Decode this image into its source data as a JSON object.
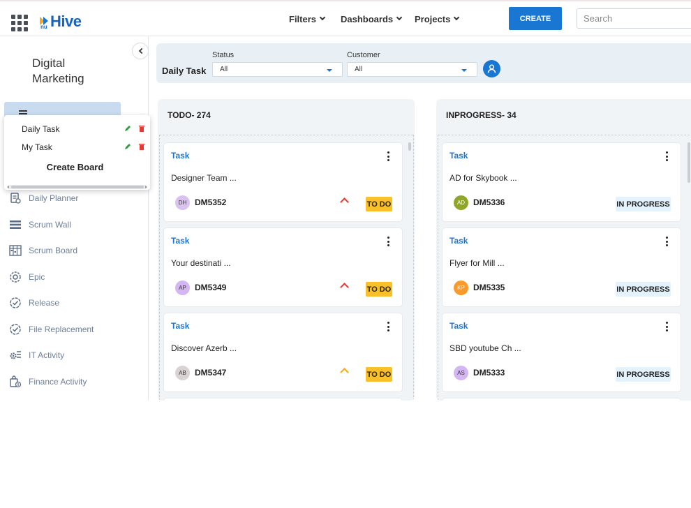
{
  "header": {
    "logo": "Hive",
    "logo_prefix": "nu",
    "nav": [
      "Filters",
      "Dashboards",
      "Projects"
    ],
    "create_label": "CREATE",
    "search_placeholder": "Search"
  },
  "sidebar": {
    "project_title": "Digital Marketing",
    "boards_menu": {
      "boards": [
        "Daily Task",
        "My Task"
      ],
      "create_label": "Create Board"
    },
    "items": [
      {
        "label": "Daily Planner",
        "icon": "daily-planner-icon"
      },
      {
        "label": "Scrum Wall",
        "icon": "scrum-wall-icon"
      },
      {
        "label": "Scrum Board",
        "icon": "scrum-board-icon"
      },
      {
        "label": "Epic",
        "icon": "epic-icon"
      },
      {
        "label": "Release",
        "icon": "release-icon"
      },
      {
        "label": "File Replacement",
        "icon": "file-replacement-icon"
      },
      {
        "label": "IT Activity",
        "icon": "it-activity-icon"
      },
      {
        "label": "Finance Activity",
        "icon": "finance-activity-icon"
      }
    ]
  },
  "filters": {
    "board_title": "Daily Task",
    "status_label": "Status",
    "status_value": "All",
    "customer_label": "Customer",
    "customer_value": "All"
  },
  "columns": [
    {
      "title": "TODO- 274",
      "cards": [
        {
          "type": "Task",
          "name": "Designer Team ...",
          "initials": "DH",
          "avatar_color": "#d9c2f0",
          "id": "DM5352",
          "priority_color": "#e53935",
          "status": "TO DO"
        },
        {
          "type": "Task",
          "name": "Your destinati ...",
          "initials": "AP",
          "avatar_color": "#d4b6f2",
          "id": "DM5349",
          "priority_color": "#e53935",
          "status": "TO DO"
        },
        {
          "type": "Task",
          "name": "Discover Azerb ...",
          "initials": "AB",
          "avatar_color": "#d9d3d3",
          "id": "DM5347",
          "priority_color": "#f5a623",
          "status": "TO DO"
        }
      ]
    },
    {
      "title": "INPROGRESS- 34",
      "cards": [
        {
          "type": "Task",
          "name": "AD for Skybook ...",
          "initials": "AD",
          "avatar_color": "#8fa62a",
          "id": "DM5336",
          "priority_color": "#e53935",
          "status": "IN PROGRESS"
        },
        {
          "type": "Task",
          "name": "Flyer for Mill ...",
          "initials": "KP",
          "avatar_color": "#f99a2a",
          "id": "DM5335",
          "priority_color": "#e53935",
          "status": "IN PROGRESS"
        },
        {
          "type": "Task",
          "name": "SBD youtube Ch ...",
          "initials": "AS",
          "avatar_color": "#d4b6f2",
          "id": "DM5333",
          "priority_color": "#e53935",
          "status": "IN PROGRESS"
        }
      ]
    }
  ]
}
